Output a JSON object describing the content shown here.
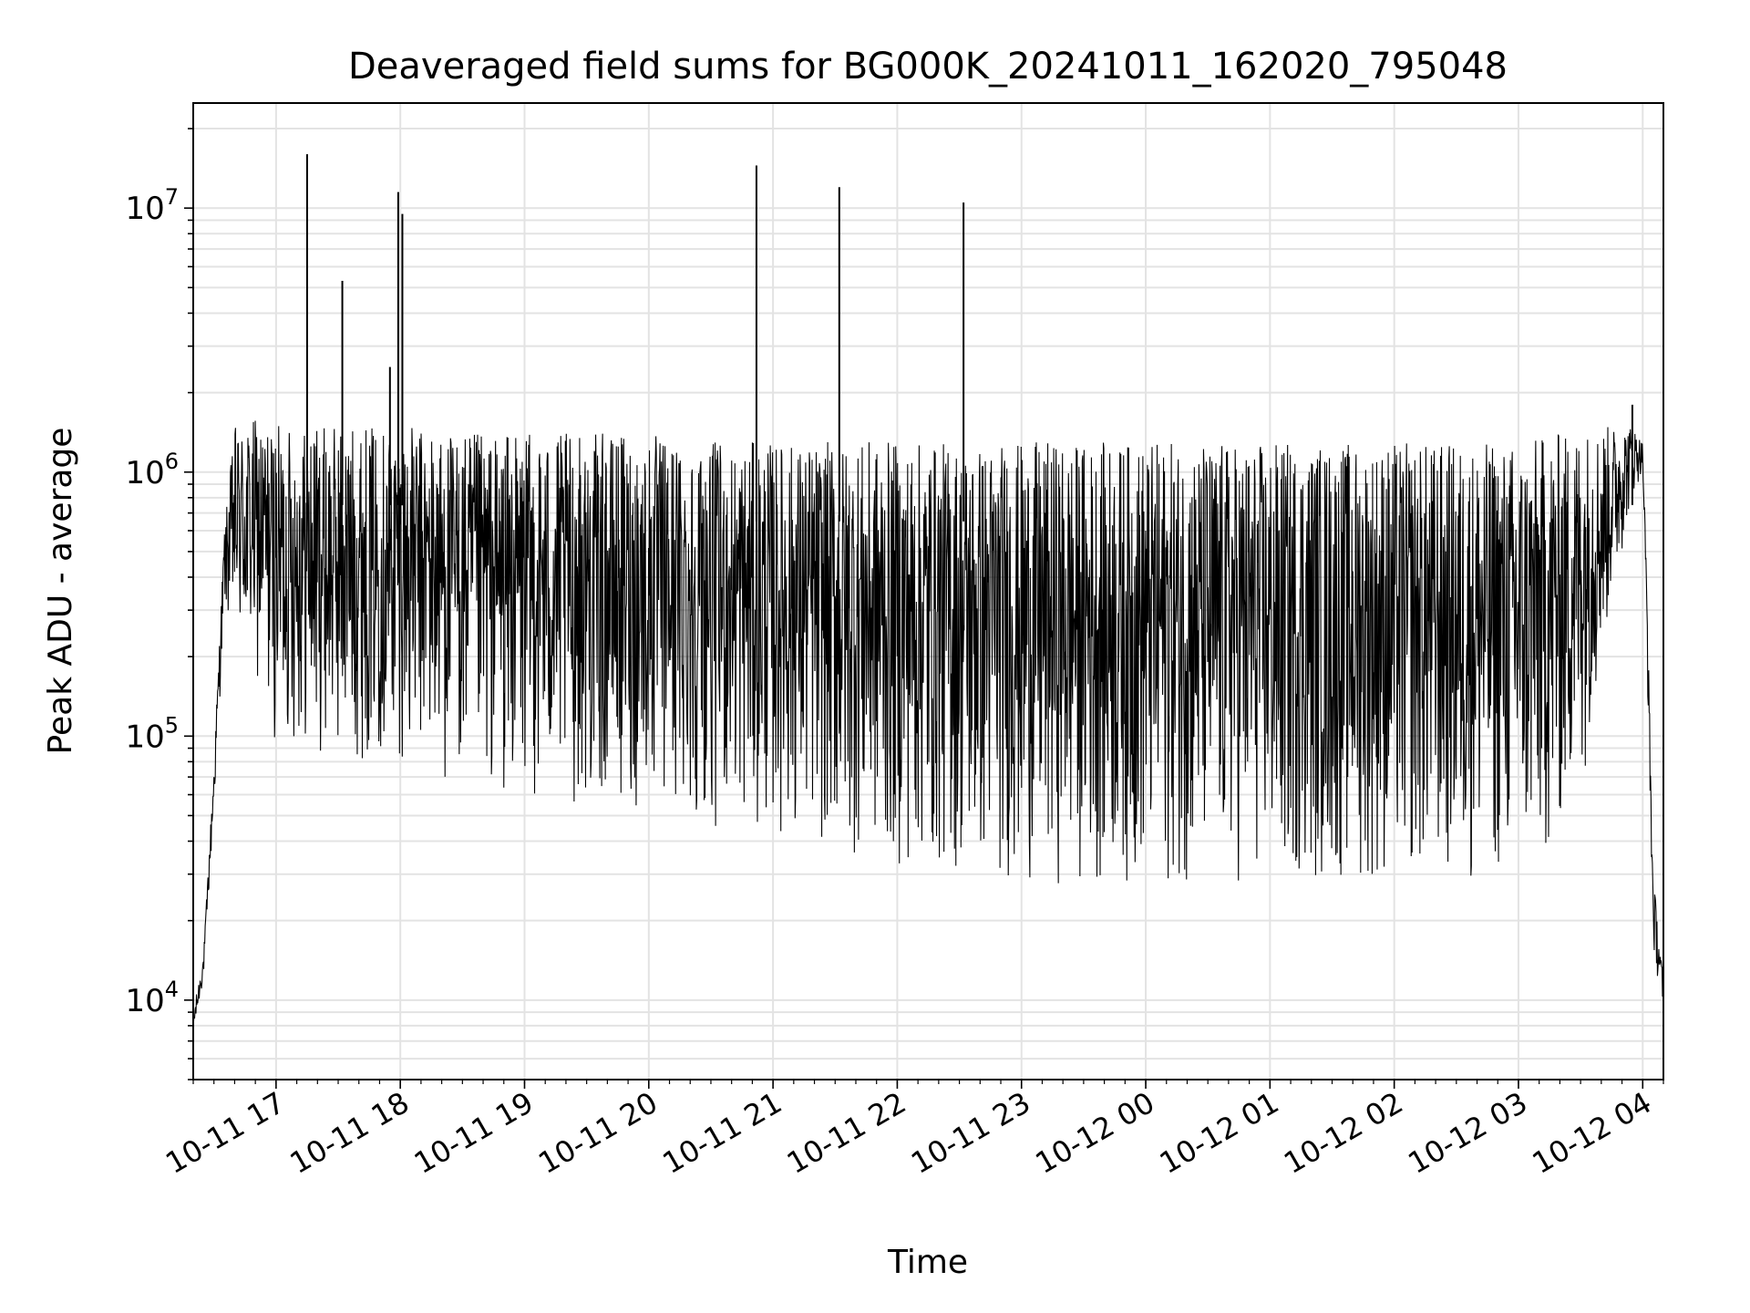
{
  "chart_data": {
    "type": "line",
    "title": "Deaveraged field sums for BG000K_20241011_162020_795048",
    "xlabel": "Time",
    "ylabel": "Peak ADU - average",
    "yscale": "log",
    "grid": true,
    "line_color": "#000000",
    "xlim": [
      "2024-10-11 16:20",
      "2024-10-12 04:10"
    ],
    "ylim": [
      5000,
      25000000
    ],
    "x_ticks": [
      {
        "x": "2024-10-11 17:00",
        "label": "10-11 17"
      },
      {
        "x": "2024-10-11 18:00",
        "label": "10-11 18"
      },
      {
        "x": "2024-10-11 19:00",
        "label": "10-11 19"
      },
      {
        "x": "2024-10-11 20:00",
        "label": "10-11 20"
      },
      {
        "x": "2024-10-11 21:00",
        "label": "10-11 21"
      },
      {
        "x": "2024-10-11 22:00",
        "label": "10-11 22"
      },
      {
        "x": "2024-10-11 23:00",
        "label": "10-11 23"
      },
      {
        "x": "2024-10-12 00:00",
        "label": "10-12 00"
      },
      {
        "x": "2024-10-12 01:00",
        "label": "10-12 01"
      },
      {
        "x": "2024-10-12 02:00",
        "label": "10-12 02"
      },
      {
        "x": "2024-10-12 03:00",
        "label": "10-12 03"
      },
      {
        "x": "2024-10-12 04:00",
        "label": "10-12 04"
      }
    ],
    "y_ticks": [
      {
        "value": 10000,
        "base": "10",
        "exp": "4"
      },
      {
        "value": 100000,
        "base": "10",
        "exp": "5"
      },
      {
        "value": 1000000,
        "base": "10",
        "exp": "6"
      },
      {
        "value": 10000000,
        "base": "10",
        "exp": "7"
      }
    ],
    "series": [
      {
        "values_described_as": "envelope",
        "x": [
          "2024-10-11 16:20",
          "2024-10-11 16:25",
          "2024-10-11 16:30",
          "2024-10-11 16:35",
          "2024-10-11 16:40",
          "2024-10-11 16:50",
          "2024-10-11 17:00",
          "2024-10-11 17:30",
          "2024-10-11 18:00",
          "2024-10-11 18:30",
          "2024-10-11 19:00",
          "2024-10-11 19:30",
          "2024-10-11 20:00",
          "2024-10-11 20:30",
          "2024-10-11 21:00",
          "2024-10-11 21:30",
          "2024-10-11 22:00",
          "2024-10-11 22:30",
          "2024-10-11 23:00",
          "2024-10-11 23:30",
          "2024-10-12 00:00",
          "2024-10-12 00:30",
          "2024-10-12 01:00",
          "2024-10-12 01:30",
          "2024-10-12 02:00",
          "2024-10-12 02:30",
          "2024-10-12 03:00",
          "2024-10-12 03:15",
          "2024-10-12 03:30",
          "2024-10-12 03:45",
          "2024-10-12 03:55",
          "2024-10-12 04:00",
          "2024-10-12 04:02",
          "2024-10-12 04:05",
          "2024-10-12 04:10"
        ],
        "upper": [
          9000,
          15000,
          80000,
          600000,
          1500000,
          1600000,
          1500000,
          1500000,
          1500000,
          1400000,
          1400000,
          1400000,
          1400000,
          1300000,
          1300000,
          1300000,
          1300000,
          1300000,
          1300000,
          1300000,
          1300000,
          1300000,
          1300000,
          1300000,
          1300000,
          1300000,
          1300000,
          1400000,
          1500000,
          1500000,
          1500000,
          1300000,
          400000,
          30000,
          12000
        ],
        "lower": [
          7000,
          12000,
          50000,
          300000,
          200000,
          150000,
          90000,
          80000,
          80000,
          60000,
          55000,
          52000,
          48000,
          45000,
          42000,
          35000,
          30000,
          28000,
          27000,
          27000,
          26000,
          26000,
          26000,
          26000,
          26000,
          26000,
          27000,
          30000,
          60000,
          300000,
          800000,
          1000000,
          200000,
          15000,
          9000
        ]
      }
    ],
    "spikes": [
      {
        "x": "2024-10-11 17:15",
        "y": 16000000
      },
      {
        "x": "2024-10-11 17:32",
        "y": 5300000
      },
      {
        "x": "2024-10-11 17:55",
        "y": 2500000
      },
      {
        "x": "2024-10-11 17:59",
        "y": 11500000
      },
      {
        "x": "2024-10-11 18:01",
        "y": 9500000
      },
      {
        "x": "2024-10-11 20:52",
        "y": 14500000
      },
      {
        "x": "2024-10-11 21:32",
        "y": 12000000
      },
      {
        "x": "2024-10-11 22:32",
        "y": 10500000
      },
      {
        "x": "2024-10-12 03:55",
        "y": 1800000
      }
    ]
  }
}
